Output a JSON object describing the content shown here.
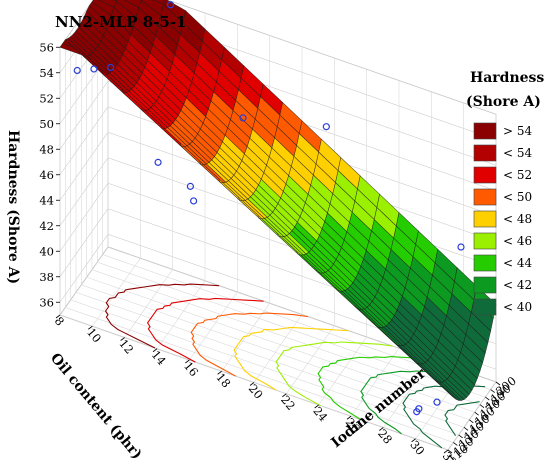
{
  "chart_data": {
    "type": "surface3d",
    "title": "NN2-MLP 8-5-1",
    "zlabel": "Hardness (Shore A)",
    "xlabel": "Oil content (phr)",
    "ylabel": "Iodine number",
    "x_ticks": [
      "8",
      "10",
      "12",
      "14",
      "16",
      "18",
      "20",
      "22",
      "24",
      "26",
      "28",
      "30",
      "32"
    ],
    "y_ticks": [
      "110",
      "120",
      "130",
      "140",
      "150",
      "160",
      "170",
      "180",
      "190",
      "200"
    ],
    "z_ticks": [
      "36",
      "38",
      "40",
      "42",
      "44",
      "46",
      "48",
      "50",
      "52",
      "54",
      "56"
    ],
    "xlim": [
      8,
      32
    ],
    "ylim": [
      110,
      200
    ],
    "zlim": [
      35,
      56
    ],
    "surface_model": "approximate: hardness decreases with oil content, parabolic in iodine number with minimum near 150",
    "corner_values": [
      {
        "oil": 8,
        "iodine": 110,
        "hardness": 55.0
      },
      {
        "oil": 8,
        "iodine": 200,
        "hardness": 55.5
      },
      {
        "oil": 32,
        "iodine": 110,
        "hardness": 42.0
      },
      {
        "oil": 32,
        "iodine": 200,
        "hardness": 40.5
      },
      {
        "oil": 32,
        "iodine": 150,
        "hardness": 34.0
      }
    ],
    "points": [
      {
        "oil": 9,
        "iodine": 112,
        "hardness": 54.5
      },
      {
        "oil": 10,
        "iodine": 113,
        "hardness": 55.0
      },
      {
        "oil": 11,
        "iodine": 114,
        "hardness": 55.5
      },
      {
        "oil": 12,
        "iodine": 196,
        "hardness": 56.0
      },
      {
        "oil": 14,
        "iodine": 112,
        "hardness": 49.5
      },
      {
        "oil": 16,
        "iodine": 112,
        "hardness": 48.5
      },
      {
        "oil": 16,
        "iodine": 118,
        "hardness": 47.0
      },
      {
        "oil": 18,
        "iodine": 150,
        "hardness": 52.5
      },
      {
        "oil": 22,
        "iodine": 185,
        "hardness": 51.5
      },
      {
        "oil": 30,
        "iodine": 112,
        "hardness": 37.0
      },
      {
        "oil": 30,
        "iodine": 116,
        "hardness": 37.0
      },
      {
        "oil": 30,
        "iodine": 150,
        "hardness": 35.5
      },
      {
        "oil": 30,
        "iodine": 195,
        "hardness": 45.0
      }
    ],
    "legend": {
      "title_line1": "Hardness",
      "title_line2": "(Shore A)",
      "entries": [
        {
          "label": "> 54",
          "color": "#8b0000"
        },
        {
          "label": "< 54",
          "color": "#b30000"
        },
        {
          "label": "< 52",
          "color": "#e00000"
        },
        {
          "label": "< 50",
          "color": "#ff5a00"
        },
        {
          "label": "< 48",
          "color": "#ffd000"
        },
        {
          "label": "< 46",
          "color": "#9bef00"
        },
        {
          "label": "< 44",
          "color": "#25cc00"
        },
        {
          "label": "< 42",
          "color": "#0c9a20"
        },
        {
          "label": "< 40",
          "color": "#0f6b3a"
        }
      ]
    }
  }
}
